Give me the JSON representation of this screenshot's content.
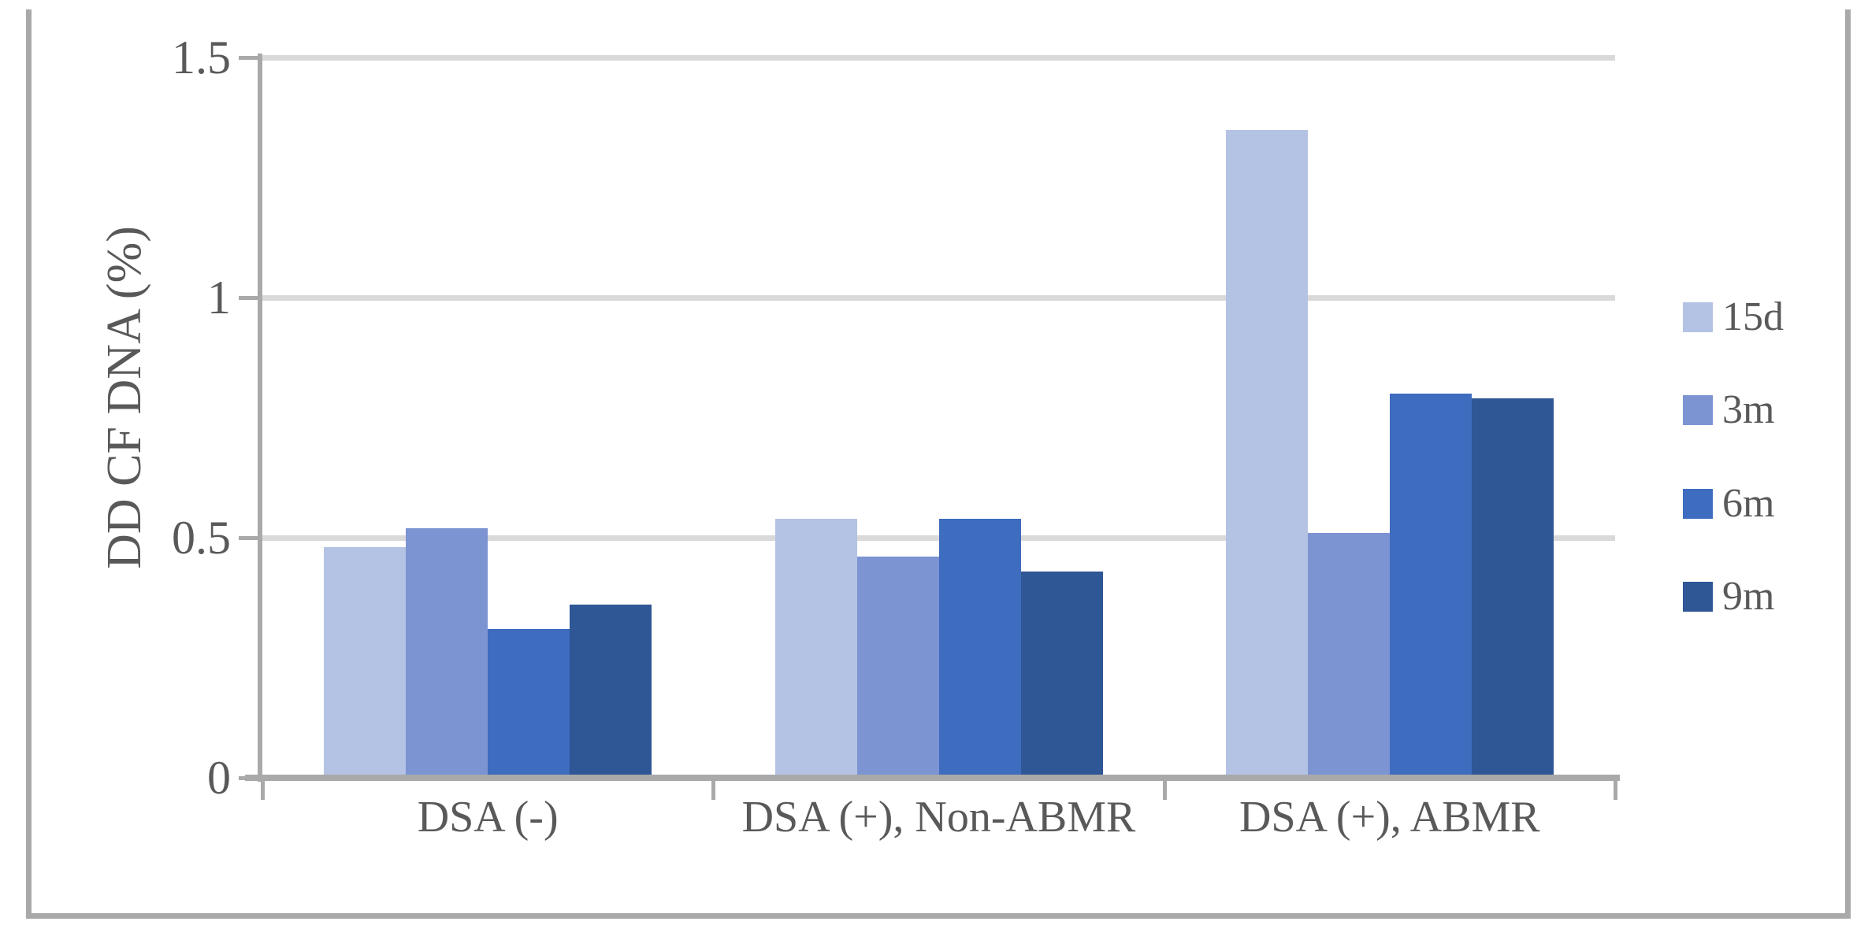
{
  "chart_data": {
    "type": "bar",
    "categories": [
      "DSA (-)",
      "DSA (+), Non-ABMR",
      "DSA (+), ABMR"
    ],
    "series": [
      {
        "name": "15d",
        "color": "#B4C2E4",
        "values": [
          0.48,
          0.54,
          1.35
        ]
      },
      {
        "name": "3m",
        "color": "#7D94D3",
        "values": [
          0.52,
          0.46,
          0.51
        ]
      },
      {
        "name": "6m",
        "color": "#3E6CBE",
        "values": [
          0.31,
          0.54,
          0.8
        ]
      },
      {
        "name": "9m",
        "color": "#2F5695",
        "values": [
          0.36,
          0.43,
          0.79
        ]
      }
    ],
    "title": "",
    "xlabel": "",
    "ylabel": "DD CF DNA (%)",
    "ylim": [
      0,
      1.5
    ],
    "y_ticks": [
      0,
      0.5,
      1,
      1.5
    ],
    "y_tick_labels": [
      "0",
      "0.5",
      "1",
      "1.5"
    ],
    "grid": true,
    "legend_position": "right"
  },
  "colors": {
    "gridline": "#d9d9d9",
    "axis": "#a9a9a9",
    "frame": "#a9a9a9",
    "text": "#595959",
    "background": "#ffffff"
  }
}
